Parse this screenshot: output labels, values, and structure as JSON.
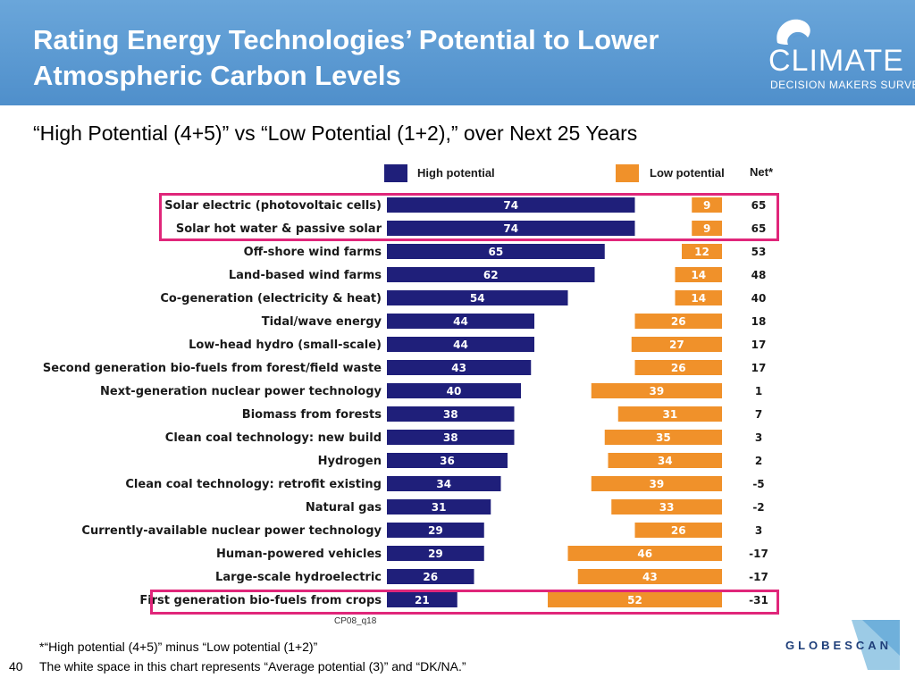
{
  "header": {
    "title_line1": "Rating Energy Technologies’ Potential to Lower",
    "title_line2": "Atmospheric Carbon Levels",
    "logo_word": "CLIMATE",
    "logo_sub": "DECISION MAKERS SURVEY",
    "colors": {
      "background": "#5b9bd5",
      "text": "#ffffff"
    }
  },
  "subtitle": "“High Potential (4+5)” vs “Low Potential (1+2),” over Next 25 Years",
  "legend": {
    "high": "High potential",
    "low": "Low potential",
    "net": "Net*"
  },
  "source_code": "CP08_q18",
  "footnotes": {
    "line1": "*“High potential (4+5)” minus “Low potential (1+2)”",
    "line2": "The white space in this chart represents “Average potential (3)” and “DK/NA.”"
  },
  "page_number": "40",
  "footer_logo": "GLOBESCAN",
  "chart_data": {
    "type": "bar",
    "orientation": "horizontal",
    "categories": [
      "Solar electric (photovoltaic cells)",
      "Solar hot water & passive solar",
      "Off-shore wind farms",
      "Land-based wind farms",
      "Co-generation (electricity & heat)",
      "Tidal/wave energy",
      "Low-head hydro (small-scale)",
      "Second generation bio-fuels from forest/field waste",
      "Next-generation nuclear power technology",
      "Biomass from forests",
      "Clean coal technology: new build",
      "Hydrogen",
      "Clean coal technology: retrofit existing",
      "Natural gas",
      "Currently-available nuclear power technology",
      "Human-powered vehicles",
      "Large-scale hydroelectric",
      "First generation bio-fuels from crops"
    ],
    "series": [
      {
        "name": "High potential",
        "color": "#1f1f7a",
        "values": [
          74,
          74,
          65,
          62,
          54,
          44,
          44,
          43,
          40,
          38,
          38,
          36,
          34,
          31,
          29,
          29,
          26,
          21
        ]
      },
      {
        "name": "Low potential",
        "color": "#f0912a",
        "values": [
          9,
          9,
          12,
          14,
          14,
          26,
          27,
          26,
          39,
          31,
          35,
          34,
          39,
          33,
          26,
          46,
          43,
          52
        ]
      }
    ],
    "net": [
      "65",
      "65",
      "53",
      "48",
      "40",
      "18",
      "17",
      "17",
      "1",
      "7",
      "3",
      "2",
      "-5",
      "-2",
      "3",
      "-17",
      "-17",
      "-31"
    ],
    "xlim": [
      0,
      100
    ],
    "highlighted_rows": [
      0,
      1,
      17
    ],
    "highlight_color": "#e0267a"
  }
}
